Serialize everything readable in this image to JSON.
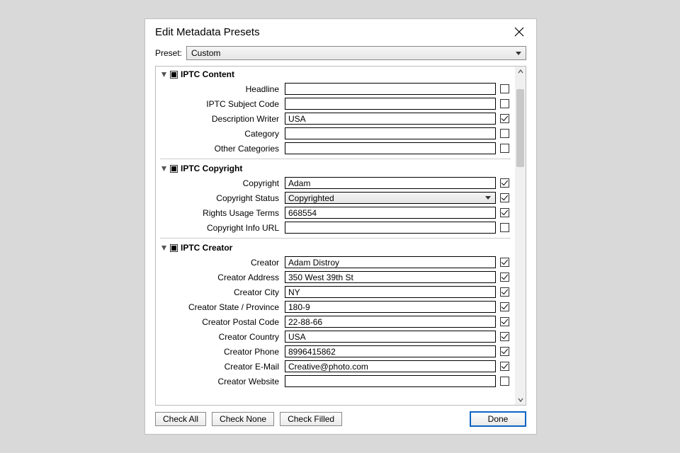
{
  "dialog": {
    "title": "Edit Metadata Presets",
    "preset_label": "Preset:",
    "preset_value": "Custom"
  },
  "sections": [
    {
      "title": "IPTC Content",
      "fields": [
        {
          "label": "Headline",
          "value": "",
          "checked": false,
          "type": "text"
        },
        {
          "label": "IPTC Subject Code",
          "value": "",
          "checked": false,
          "type": "text"
        },
        {
          "label": "Description Writer",
          "value": "USA",
          "checked": true,
          "type": "text"
        },
        {
          "label": "Category",
          "value": "",
          "checked": false,
          "type": "text"
        },
        {
          "label": "Other Categories",
          "value": "",
          "checked": false,
          "type": "text"
        }
      ]
    },
    {
      "title": "IPTC Copyright",
      "fields": [
        {
          "label": "Copyright",
          "value": "Adam",
          "checked": true,
          "type": "text"
        },
        {
          "label": "Copyright Status",
          "value": "Copyrighted",
          "checked": true,
          "type": "select"
        },
        {
          "label": "Rights Usage Terms",
          "value": "668554",
          "checked": true,
          "type": "text"
        },
        {
          "label": "Copyright Info URL",
          "value": "",
          "checked": false,
          "type": "text"
        }
      ]
    },
    {
      "title": "IPTC Creator",
      "fields": [
        {
          "label": "Creator",
          "value": "Adam Distroy",
          "checked": true,
          "type": "text"
        },
        {
          "label": "Creator Address",
          "value": "350 West 39th St",
          "checked": true,
          "type": "text"
        },
        {
          "label": "Creator City",
          "value": "NY",
          "checked": true,
          "type": "text"
        },
        {
          "label": "Creator State / Province",
          "value": "180-9",
          "checked": true,
          "type": "text"
        },
        {
          "label": "Creator Postal Code",
          "value": "22-88-66",
          "checked": true,
          "type": "text"
        },
        {
          "label": "Creator Country",
          "value": "USA",
          "checked": true,
          "type": "text"
        },
        {
          "label": "Creator Phone",
          "value": "8996415862",
          "checked": true,
          "type": "text"
        },
        {
          "label": "Creator E-Mail",
          "value": "Creative@photo.com",
          "checked": true,
          "type": "text"
        },
        {
          "label": "Creator Website",
          "value": "",
          "checked": false,
          "type": "text"
        }
      ]
    }
  ],
  "buttons": {
    "check_all": "Check All",
    "check_none": "Check None",
    "check_filled": "Check Filled",
    "done": "Done"
  },
  "colors": {
    "page_bg": "#d9d9d9",
    "dialog_bg": "#ffffff",
    "border": "#bfbfbf",
    "primary_border": "#0a64c4"
  }
}
